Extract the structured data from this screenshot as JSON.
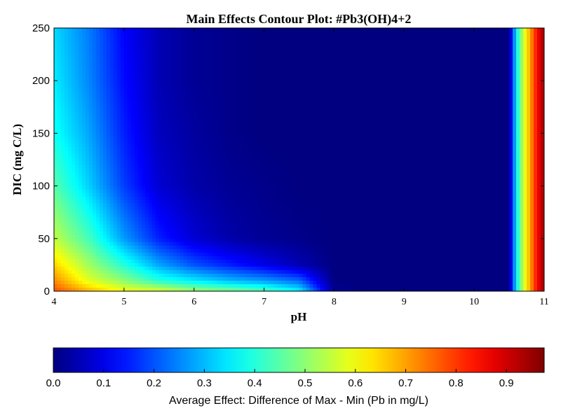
{
  "chart_data": {
    "type": "heatmap",
    "title": "Main Effects Contour Plot: #Pb3(OH)4+2",
    "xlabel": "pH",
    "ylabel": "DIC (mg C/L)",
    "xlim": [
      4,
      11
    ],
    "ylim": [
      0,
      250
    ],
    "x_ticks": [
      "4",
      "5",
      "6",
      "7",
      "8",
      "9",
      "10",
      "11"
    ],
    "y_ticks": [
      "0",
      "50",
      "100",
      "150",
      "200",
      "250"
    ],
    "x": [
      4.0,
      4.5,
      5.0,
      5.5,
      6.0,
      6.5,
      7.0,
      7.5,
      8.0,
      8.5,
      9.0,
      9.5,
      10.0,
      10.5,
      10.6,
      10.7,
      10.8,
      10.9,
      11.0
    ],
    "y": [
      0,
      10,
      25,
      50,
      100,
      150,
      200,
      250
    ],
    "z": [
      [
        0.78,
        0.68,
        0.6,
        0.58,
        0.52,
        0.49,
        0.45,
        0.36,
        0.02,
        0.0,
        0.0,
        0.0,
        0.0,
        0.0,
        0.35,
        0.55,
        0.7,
        0.85,
        0.95
      ],
      [
        0.72,
        0.58,
        0.5,
        0.4,
        0.35,
        0.3,
        0.27,
        0.22,
        0.0,
        0.0,
        0.0,
        0.0,
        0.0,
        0.0,
        0.35,
        0.55,
        0.7,
        0.85,
        0.95
      ],
      [
        0.65,
        0.52,
        0.4,
        0.28,
        0.2,
        0.15,
        0.1,
        0.05,
        0.0,
        0.0,
        0.0,
        0.0,
        0.0,
        0.0,
        0.35,
        0.55,
        0.7,
        0.85,
        0.95
      ],
      [
        0.55,
        0.43,
        0.27,
        0.15,
        0.08,
        0.04,
        0.02,
        0.01,
        0.0,
        0.0,
        0.0,
        0.0,
        0.0,
        0.0,
        0.35,
        0.55,
        0.7,
        0.85,
        0.95
      ],
      [
        0.45,
        0.32,
        0.18,
        0.08,
        0.04,
        0.02,
        0.01,
        0.0,
        0.0,
        0.0,
        0.0,
        0.0,
        0.0,
        0.0,
        0.35,
        0.55,
        0.7,
        0.85,
        0.95
      ],
      [
        0.38,
        0.28,
        0.15,
        0.06,
        0.03,
        0.01,
        0.0,
        0.0,
        0.0,
        0.0,
        0.0,
        0.0,
        0.0,
        0.0,
        0.35,
        0.55,
        0.7,
        0.85,
        0.95
      ],
      [
        0.35,
        0.25,
        0.13,
        0.05,
        0.02,
        0.01,
        0.0,
        0.0,
        0.0,
        0.0,
        0.0,
        0.0,
        0.0,
        0.0,
        0.35,
        0.55,
        0.7,
        0.85,
        0.95
      ],
      [
        0.33,
        0.24,
        0.12,
        0.05,
        0.02,
        0.01,
        0.0,
        0.0,
        0.0,
        0.0,
        0.0,
        0.0,
        0.0,
        0.0,
        0.35,
        0.55,
        0.7,
        0.85,
        0.95
      ]
    ],
    "colorbar": {
      "colormap": "jet",
      "range": [
        0,
        0.975
      ],
      "orientation": "horizontal",
      "label": "Average Effect: Difference of Max - Min (Pb in mg/L)",
      "ticks": [
        "0.0",
        "0.1",
        "0.2",
        "0.3",
        "0.4",
        "0.5",
        "0.6",
        "0.7",
        "0.8",
        "0.9"
      ]
    },
    "grid": false,
    "legend": "none"
  }
}
